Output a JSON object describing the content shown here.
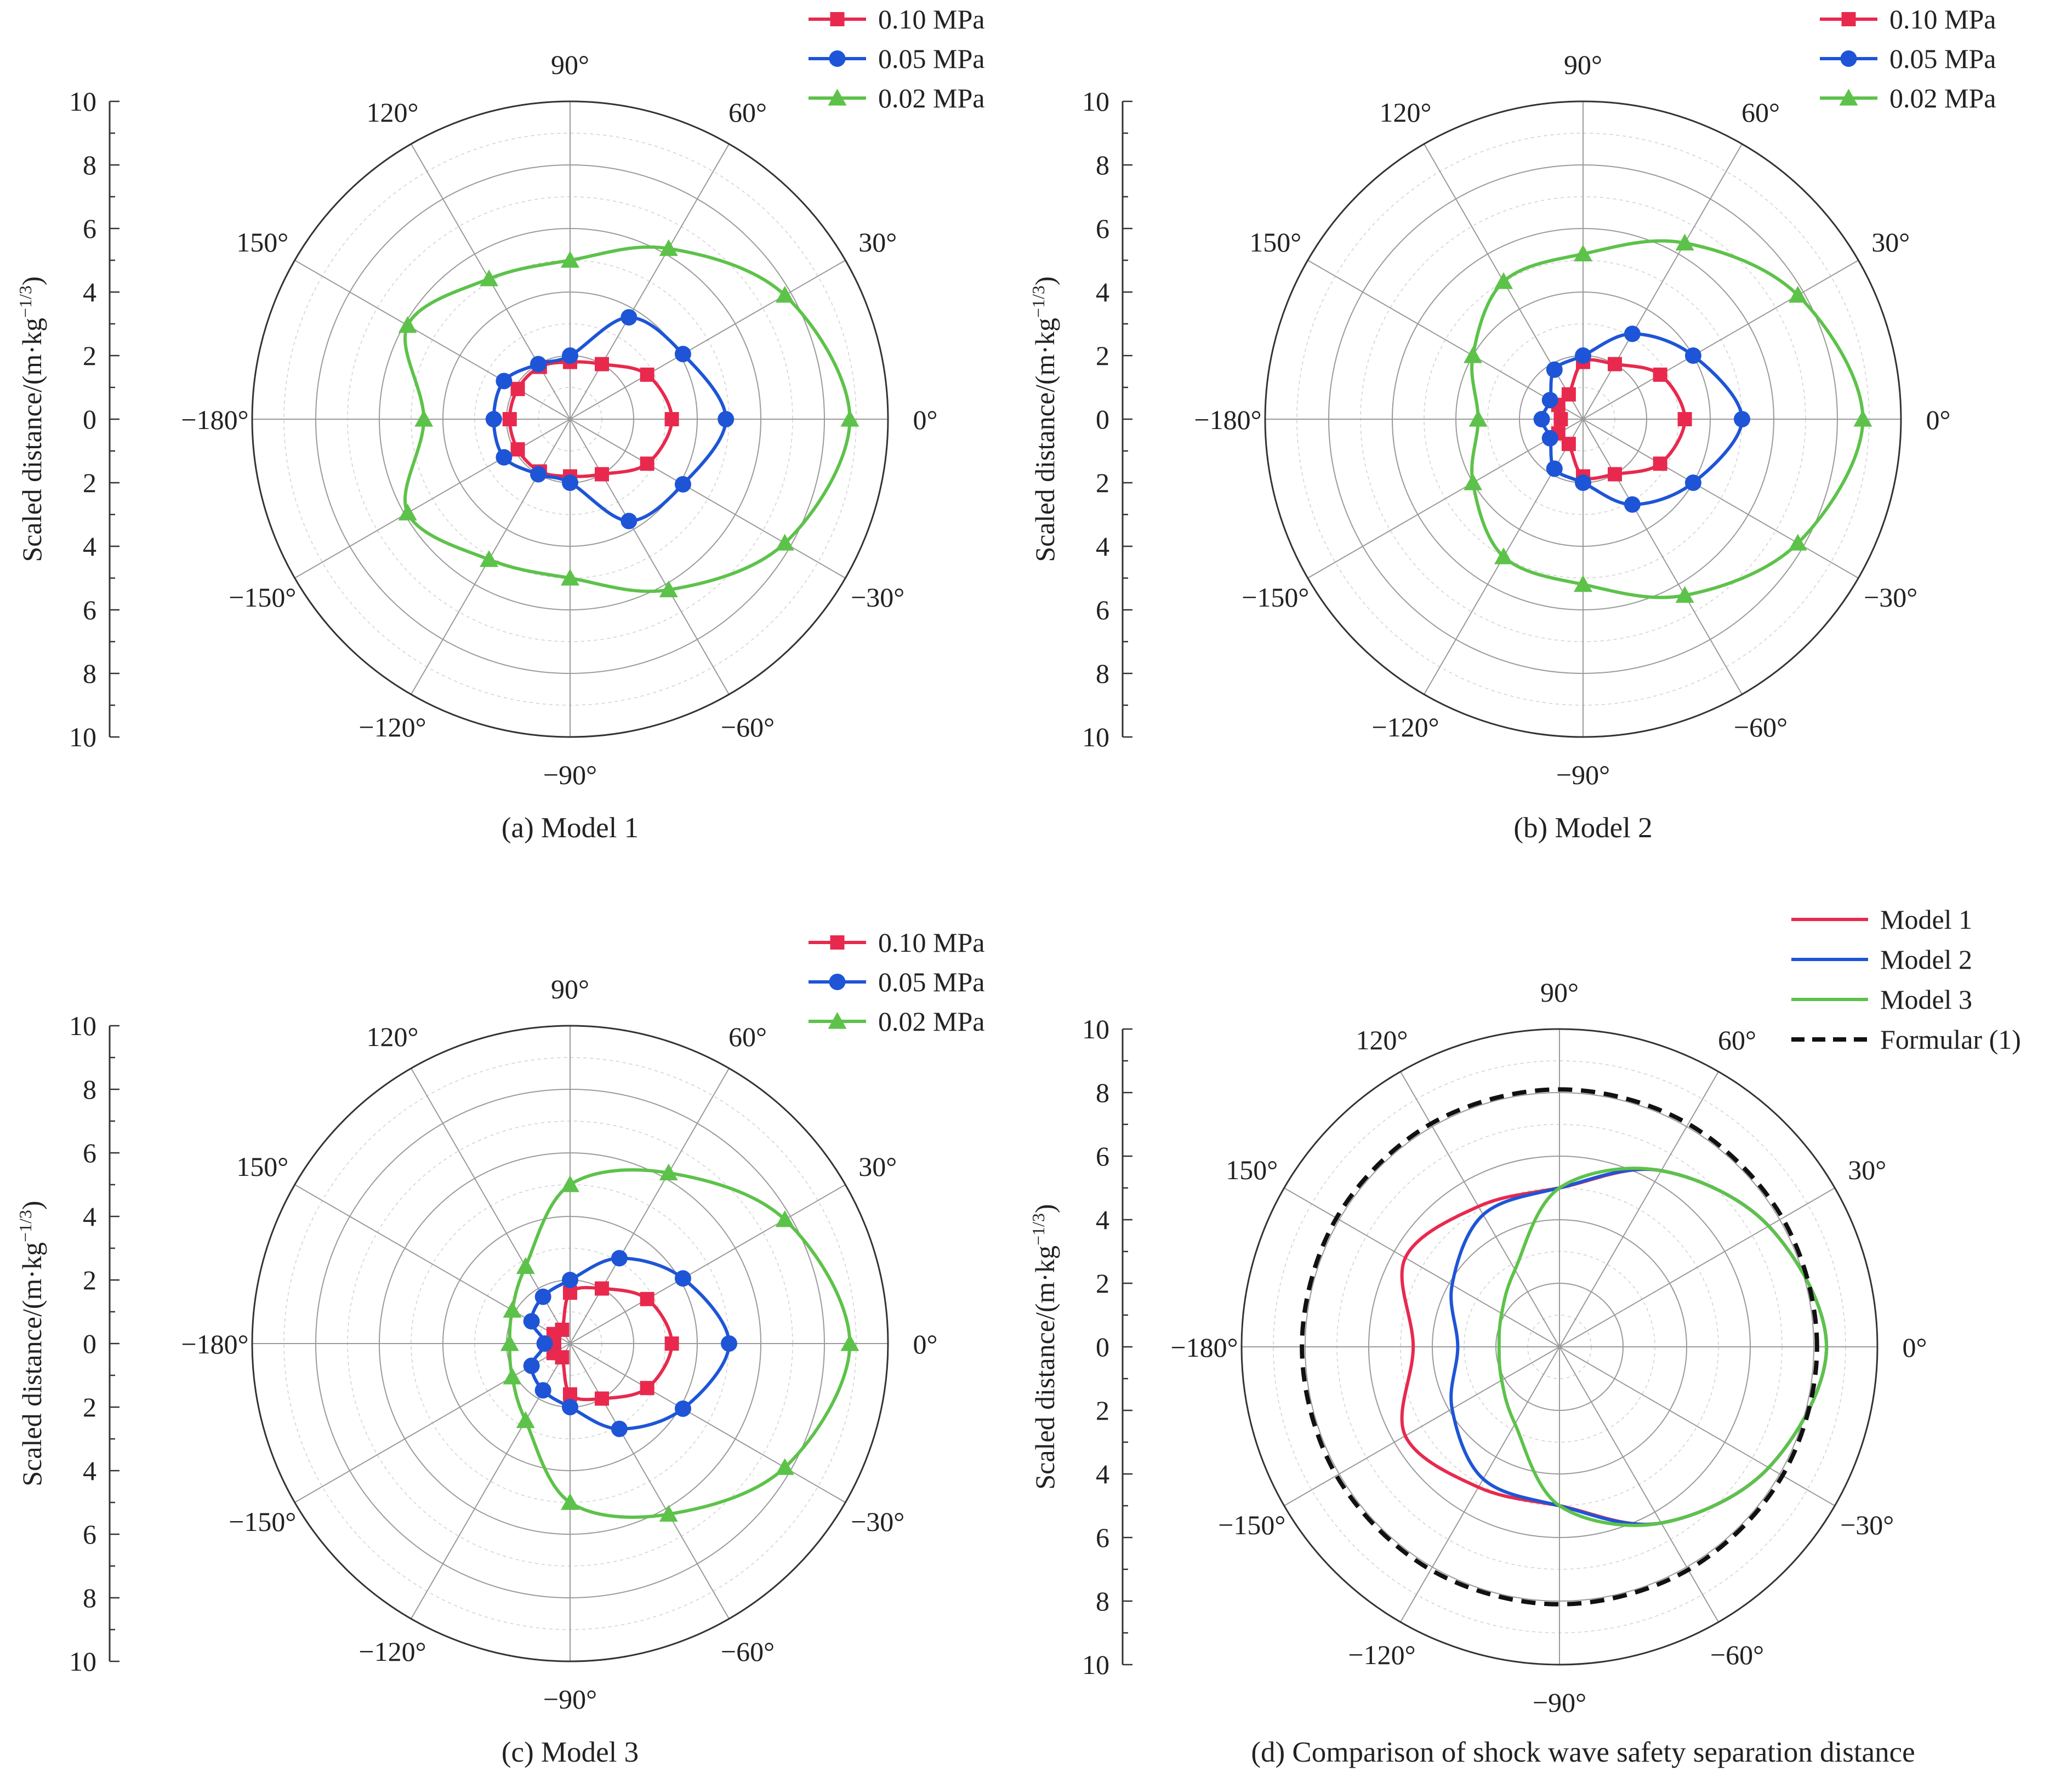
{
  "panels": [
    {
      "caption": "(a) Model 1",
      "y_axis_label_main": "Scaled distance/(m·kg",
      "y_axis_label_exp": "−1/3",
      "y_axis_label_close": ")",
      "y_ticks": [
        "10",
        "8",
        "6",
        "4",
        "2",
        "0",
        "2",
        "4",
        "6",
        "8",
        "10"
      ],
      "angle_labels": [
        "0°",
        "30°",
        "60°",
        "90°",
        "120°",
        "150°",
        "−180°",
        "−150°",
        "−120°",
        "−90°",
        "−60°",
        "−30°"
      ]
    },
    {
      "caption": "(b) Model 2",
      "y_axis_label_main": "Scaled distance/(m·kg",
      "y_axis_label_exp": "−1/3",
      "y_axis_label_close": ")",
      "y_ticks": [
        "10",
        "8",
        "6",
        "4",
        "2",
        "0",
        "2",
        "4",
        "6",
        "8",
        "10"
      ],
      "angle_labels": [
        "0°",
        "30°",
        "60°",
        "90°",
        "120°",
        "150°",
        "−180°",
        "−150°",
        "−120°",
        "−90°",
        "−60°",
        "−30°"
      ]
    },
    {
      "caption": "(c) Model 3",
      "y_axis_label_main": "Scaled distance/(m·kg",
      "y_axis_label_exp": "−1/3",
      "y_axis_label_close": ")",
      "y_ticks": [
        "10",
        "8",
        "6",
        "4",
        "2",
        "0",
        "2",
        "4",
        "6",
        "8",
        "10"
      ],
      "angle_labels": [
        "0°",
        "30°",
        "60°",
        "90°",
        "120°",
        "150°",
        "−180°",
        "−150°",
        "−120°",
        "−90°",
        "−60°",
        "−30°"
      ]
    },
    {
      "caption": "(d) Comparison of shock wave safety separation distance",
      "y_axis_label_main": "Scaled distance/(m·kg",
      "y_axis_label_exp": "−1/3",
      "y_axis_label_close": ")",
      "y_ticks": [
        "10",
        "8",
        "6",
        "4",
        "2",
        "0",
        "2",
        "4",
        "6",
        "8",
        "10"
      ],
      "angle_labels": [
        "0°",
        "30°",
        "60°",
        "90°",
        "120°",
        "150°",
        "−180°",
        "−150°",
        "−120°",
        "−90°",
        "−60°",
        "−30°"
      ]
    }
  ],
  "chart_data": [
    {
      "type": "polar-line",
      "title": "(a) Model 1",
      "ylabel": "Scaled distance/(m·kg−1/3)",
      "rlim": [
        0,
        10
      ],
      "theta_unit": "degrees",
      "theta": [
        0,
        30,
        60,
        90,
        120,
        150,
        180,
        -150,
        -120,
        -90,
        -60,
        -30
      ],
      "legend_position": "top-right",
      "series": [
        {
          "name": "0.10 MPa",
          "color": "#e8294d",
          "marker": "square",
          "r": [
            3.2,
            2.8,
            2.0,
            1.8,
            1.9,
            1.9,
            1.9,
            1.9,
            1.9,
            1.8,
            2.0,
            2.8
          ]
        },
        {
          "name": "0.05 MPa",
          "color": "#1e55d6",
          "marker": "circle",
          "r": [
            4.9,
            4.1,
            3.7,
            2.0,
            2.0,
            2.4,
            2.4,
            2.4,
            2.0,
            2.0,
            3.7,
            4.1
          ]
        },
        {
          "name": "0.02 MPa",
          "color": "#5dc24a",
          "marker": "triangle",
          "r": [
            8.8,
            7.8,
            6.2,
            5.0,
            5.1,
            5.9,
            4.6,
            5.9,
            5.1,
            5.0,
            6.2,
            7.8
          ]
        }
      ]
    },
    {
      "type": "polar-line",
      "title": "(b) Model 2",
      "ylabel": "Scaled distance/(m·kg−1/3)",
      "rlim": [
        0,
        10
      ],
      "theta_unit": "degrees",
      "theta": [
        0,
        30,
        60,
        90,
        120,
        150,
        180,
        -150,
        -120,
        -90,
        -60,
        -30
      ],
      "legend_position": "top-right",
      "series": [
        {
          "name": "0.10 MPa",
          "color": "#e8294d",
          "marker": "square",
          "r": [
            3.2,
            2.8,
            2.0,
            1.8,
            0.9,
            0.9,
            0.7,
            0.9,
            0.9,
            1.8,
            2.0,
            2.8
          ]
        },
        {
          "name": "0.05 MPa",
          "color": "#1e55d6",
          "marker": "circle",
          "r": [
            5.0,
            4.0,
            3.1,
            2.0,
            1.8,
            1.2,
            1.3,
            1.2,
            1.8,
            2.0,
            3.1,
            4.0
          ]
        },
        {
          "name": "0.02 MPa",
          "color": "#5dc24a",
          "marker": "triangle",
          "r": [
            8.8,
            7.8,
            6.4,
            5.2,
            5.0,
            4.0,
            3.3,
            4.0,
            5.0,
            5.2,
            6.4,
            7.8
          ]
        }
      ]
    },
    {
      "type": "polar-line",
      "title": "(c) Model 3",
      "ylabel": "Scaled distance/(m·kg−1/3)",
      "rlim": [
        0,
        10
      ],
      "theta_unit": "degrees",
      "theta": [
        0,
        30,
        60,
        90,
        120,
        150,
        180,
        -150,
        -120,
        -90,
        -60,
        -30
      ],
      "legend_position": "top-right",
      "series": [
        {
          "name": "0.10 MPa",
          "color": "#e8294d",
          "marker": "square",
          "r": [
            3.2,
            2.8,
            2.0,
            1.6,
            0.5,
            0.6,
            0.5,
            0.6,
            0.5,
            1.6,
            2.0,
            2.8
          ]
        },
        {
          "name": "0.05 MPa",
          "color": "#1e55d6",
          "marker": "circle",
          "r": [
            5.0,
            4.1,
            3.1,
            2.0,
            1.7,
            1.4,
            0.8,
            1.4,
            1.7,
            2.0,
            3.1,
            4.1
          ]
        },
        {
          "name": "0.02 MPa",
          "color": "#5dc24a",
          "marker": "triangle",
          "r": [
            8.8,
            7.8,
            6.2,
            5.0,
            2.8,
            2.1,
            1.9,
            2.1,
            2.8,
            5.0,
            6.2,
            7.8
          ]
        }
      ]
    },
    {
      "type": "polar-line",
      "title": "(d) Comparison of shock wave safety separation distance",
      "ylabel": "Scaled distance/(m·kg−1/3)",
      "rlim": [
        0,
        10
      ],
      "theta_unit": "degrees",
      "theta": [
        0,
        30,
        60,
        90,
        120,
        150,
        180,
        -150,
        -120,
        -90,
        -60,
        -30
      ],
      "legend_position": "top-right",
      "series": [
        {
          "name": "Model 1",
          "color": "#e8294d",
          "style": "solid",
          "r": [
            8.4,
            7.6,
            6.4,
            5.0,
            5.1,
            5.6,
            4.6,
            5.6,
            5.1,
            5.0,
            6.4,
            7.6
          ]
        },
        {
          "name": "Model 2",
          "color": "#1e55d6",
          "style": "solid",
          "r": [
            8.4,
            7.6,
            6.4,
            5.0,
            4.8,
            3.9,
            3.2,
            3.9,
            4.8,
            5.0,
            6.4,
            7.6
          ]
        },
        {
          "name": "Model 3",
          "color": "#5dc24a",
          "style": "solid",
          "r": [
            8.4,
            7.6,
            6.4,
            5.0,
            2.8,
            2.1,
            1.9,
            2.1,
            2.8,
            5.0,
            6.4,
            7.6
          ]
        },
        {
          "name": "Formular (1)",
          "color": "#111111",
          "style": "dashed",
          "r": [
            8.1,
            8.1,
            8.1,
            8.1,
            8.1,
            8.1,
            8.1,
            8.1,
            8.1,
            8.1,
            8.1,
            8.1
          ]
        }
      ]
    }
  ]
}
